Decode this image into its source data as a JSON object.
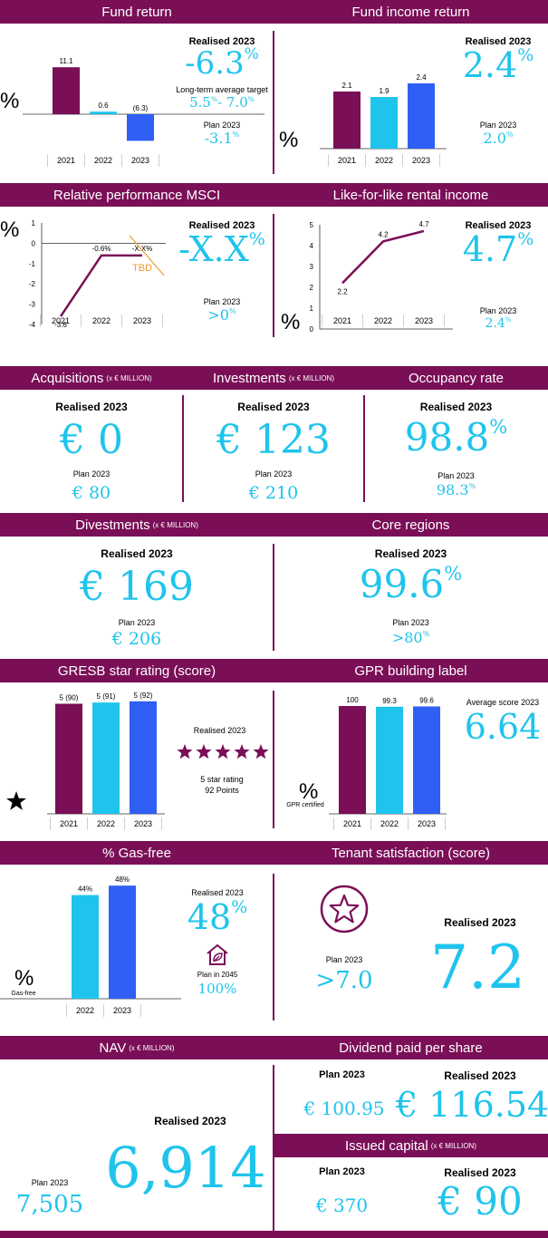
{
  "colors": {
    "plum": "#7a0f57",
    "cyan": "#1fc4ec",
    "blue": "#2f5ff5",
    "orange": "#f29a2e"
  },
  "headers": {
    "fund_return": "Fund return",
    "fund_income_return": "Fund income return",
    "relative_msci": "Relative performance MSCI",
    "lfl_rental": "Like-for-like rental income",
    "acquisitions": "Acquisitions",
    "investments": "Investments",
    "occupancy": "Occupancy rate",
    "divestments": "Divestments",
    "core_regions": "Core regions",
    "gresb": "GRESB star rating (score)",
    "gpr": "GPR building label",
    "gas_free": "% Gas-free",
    "tenant": "Tenant satisfaction (score)",
    "nav": "NAV",
    "dividend": "Dividend paid per share",
    "issued": "Issued capital",
    "unit": "(x € MILLION)"
  },
  "labels": {
    "realised": "Realised 2023",
    "plan": "Plan 2023",
    "pct": "%",
    "lt_target": "Long-term average target",
    "average_score": "Average score 2023",
    "gpr_certified": "GPR certified",
    "gas_free_unit": "Gas-free",
    "plan_2045": "Plan in 2045",
    "star_rating": "5 star rating",
    "points": "92 Points"
  },
  "values": {
    "fund_return": {
      "realised": "-6.3",
      "target": "5.5",
      "target_to": "- 7.0",
      "plan": "-3.1"
    },
    "fund_income_return": {
      "realised": "2.4",
      "plan": "2.0"
    },
    "relative_msci": {
      "realised": "-X.X",
      "plan": ">0"
    },
    "lfl_rental": {
      "realised": "4.7",
      "plan": "2.4"
    },
    "acquisitions": {
      "realised": "€ 0",
      "plan": "€ 80"
    },
    "investments": {
      "realised": "€ 123",
      "plan": "€ 210"
    },
    "occupancy": {
      "realised": "98.8",
      "plan": "98.3"
    },
    "divestments": {
      "realised": "€ 169",
      "plan": "€ 206"
    },
    "core_regions": {
      "realised": "99.6",
      "plan": ">80"
    },
    "gpr": {
      "average": "6.64"
    },
    "gas_free": {
      "realised": "48",
      "plan_2045": "100%"
    },
    "tenant": {
      "plan": ">7.0",
      "realised": "7.2"
    },
    "nav": {
      "plan": "7,505",
      "realised": "6,914"
    },
    "dividend": {
      "plan": "€ 100.95",
      "realised": "€ 116.54"
    },
    "issued": {
      "plan": "€ 370",
      "realised": "€ 90"
    }
  },
  "chart_data": [
    {
      "id": "fund_return",
      "type": "bar",
      "categories": [
        "2021",
        "2022",
        "2023"
      ],
      "values": [
        11.1,
        0.6,
        -6.3
      ],
      "value_labels": [
        "11.1",
        "0.6",
        "(6.3)"
      ]
    },
    {
      "id": "fund_income_return",
      "type": "bar",
      "categories": [
        "2021",
        "2022",
        "2023"
      ],
      "values": [
        2.1,
        1.9,
        2.4
      ],
      "value_labels": [
        "2.1",
        "1.9",
        "2.4"
      ]
    },
    {
      "id": "relative_msci",
      "type": "line",
      "categories": [
        "2021",
        "2022",
        "2023"
      ],
      "values": [
        -3.6,
        -0.6,
        -0.6
      ],
      "value_labels": [
        "-3.6",
        "-0.6%",
        "-X.X%"
      ],
      "yticks": [
        "1",
        "0",
        "-1",
        "-2",
        "-3",
        "-4"
      ],
      "ylim": [
        -4,
        1
      ],
      "annotation": "TBD"
    },
    {
      "id": "lfl_rental",
      "type": "line",
      "categories": [
        "2021",
        "2022",
        "2023"
      ],
      "values": [
        2.2,
        4.2,
        4.7
      ],
      "value_labels": [
        "2.2",
        "4.2",
        "4.7"
      ],
      "yticks": [
        "5",
        "4",
        "3",
        "2",
        "1",
        "0"
      ],
      "ylim": [
        0,
        5
      ]
    },
    {
      "id": "gresb",
      "type": "bar",
      "categories": [
        "2021",
        "2022",
        "2023"
      ],
      "values": [
        90,
        91,
        92
      ],
      "value_labels": [
        "5 (90)",
        "5 (91)",
        "5 (92)"
      ]
    },
    {
      "id": "gpr",
      "type": "bar",
      "categories": [
        "2021",
        "2022",
        "2023"
      ],
      "values": [
        100,
        99.3,
        99.6
      ],
      "value_labels": [
        "100",
        "99.3",
        "99.6"
      ]
    },
    {
      "id": "gas_free",
      "type": "bar",
      "categories": [
        "2022",
        "2023"
      ],
      "values": [
        44,
        48
      ],
      "value_labels": [
        "44%",
        "48%"
      ]
    }
  ]
}
